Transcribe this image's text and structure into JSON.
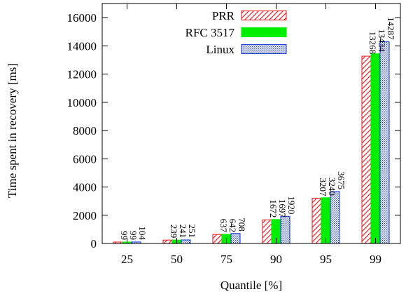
{
  "chart_data": {
    "type": "bar",
    "title": "",
    "xlabel": "Quantile [%]",
    "ylabel": "Time spent in recovery [ms]",
    "categories": [
      "25",
      "50",
      "75",
      "90",
      "95",
      "99"
    ],
    "ylim": [
      0,
      17000
    ],
    "yticks": [
      0,
      2000,
      4000,
      6000,
      8000,
      10000,
      12000,
      14000,
      16000
    ],
    "grid": false,
    "legend_position": "top-center",
    "series": [
      {
        "name": "PRR",
        "values": [
          99,
          239,
          637,
          1672,
          3207,
          13268
        ],
        "labels": [
          "99",
          "239",
          "637",
          "1672",
          "3207",
          "13268"
        ],
        "pattern": "diagonal-hatch",
        "color": "#e8232a"
      },
      {
        "name": "RFC 3517",
        "values": [
          99,
          241,
          642,
          1697,
          3240,
          13434
        ],
        "labels": [
          "99",
          "241",
          "642",
          "1697",
          "3240",
          "13434"
        ],
        "pattern": "solid",
        "color": "#00ee00"
      },
      {
        "name": "Linux",
        "values": [
          104,
          251,
          708,
          1920,
          3675,
          14287
        ],
        "labels": [
          "104",
          "251",
          "708",
          "1920",
          "3675",
          "14287"
        ],
        "pattern": "dots",
        "color": "#1f3fd6"
      }
    ]
  }
}
